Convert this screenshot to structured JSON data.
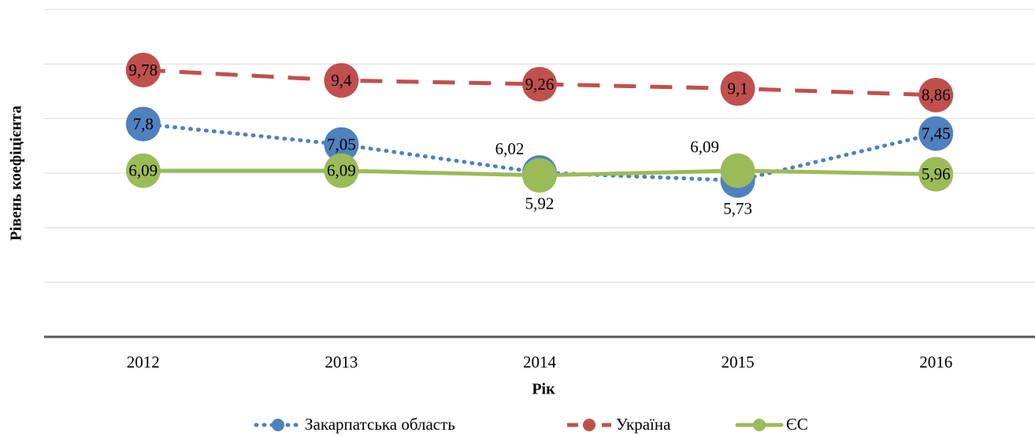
{
  "chart_data": {
    "type": "line",
    "x_label": "Рік",
    "y_label": "Рівень коефіцієнта",
    "categories": [
      "2012",
      "2013",
      "2014",
      "2015",
      "2016"
    ],
    "series": [
      {
        "name": "Закарпатська область",
        "color": "#4f81bd",
        "values": [
          7.8,
          7.05,
          6.02,
          5.73,
          7.45
        ],
        "value_labels": [
          "7,8",
          "7,05",
          "6,02",
          "5,73",
          "7,45"
        ]
      },
      {
        "name": "Україна",
        "color": "#c0504d",
        "values": [
          9.78,
          9.4,
          9.26,
          9.1,
          8.86
        ],
        "value_labels": [
          "9,78",
          "9,4",
          "9,26",
          "9,1",
          "8,86"
        ]
      },
      {
        "name": "ЄС",
        "color": "#9bbb59",
        "values": [
          6.09,
          6.09,
          5.92,
          6.09,
          5.96
        ],
        "value_labels": [
          "6,09",
          "6,09",
          "5,92",
          "6,09",
          "5,96"
        ]
      }
    ],
    "ylim": [
      0,
      12
    ],
    "yticks": [
      0,
      2,
      4,
      6,
      8,
      10,
      12
    ],
    "grid": true
  }
}
